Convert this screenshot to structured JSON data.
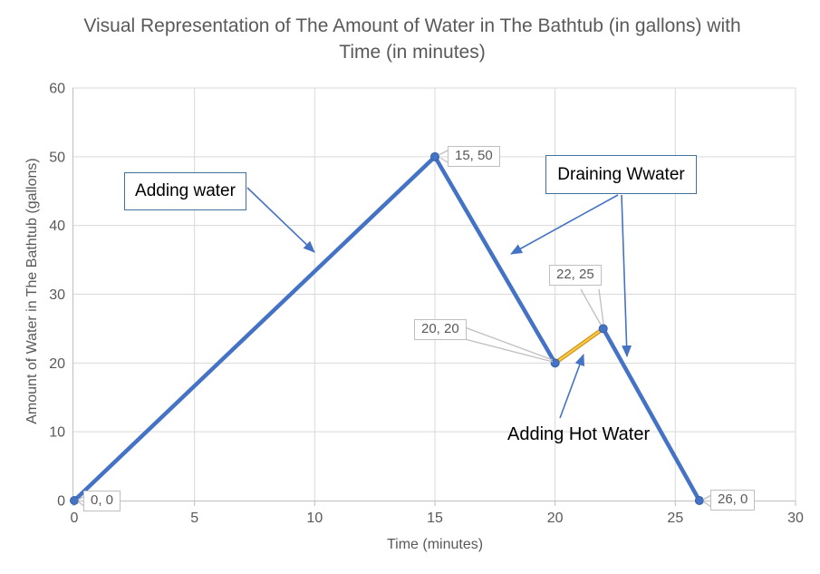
{
  "chart_data": {
    "type": "line",
    "title": "Visual Representation of The Amount of Water in The Bathtub (in gallons) with Time (in minutes)",
    "xlabel": "Time (minutes)",
    "ylabel": "Amount of Water in The Bathtub (gallons)",
    "xlim": [
      0,
      30
    ],
    "ylim": [
      0,
      60
    ],
    "x_ticks": [
      0,
      5,
      10,
      15,
      20,
      25,
      30
    ],
    "y_ticks": [
      0,
      10,
      20,
      30,
      40,
      50,
      60
    ],
    "grid": true,
    "legend": "none",
    "series": [
      {
        "name": "adding-water",
        "color": "#4472C4",
        "points": [
          [
            0,
            0
          ],
          [
            15,
            50
          ]
        ]
      },
      {
        "name": "draining-water-1",
        "color": "#4472C4",
        "points": [
          [
            15,
            50
          ],
          [
            20,
            20
          ]
        ]
      },
      {
        "name": "adding-hot-water",
        "color": "#C99117",
        "highlight": "#FFC843",
        "points": [
          [
            20,
            20
          ],
          [
            22,
            25
          ]
        ]
      },
      {
        "name": "draining-water-2",
        "color": "#4472C4",
        "points": [
          [
            22,
            25
          ],
          [
            26,
            0
          ]
        ]
      }
    ],
    "markers": [
      [
        0,
        0
      ],
      [
        15,
        50
      ],
      [
        20,
        20
      ],
      [
        22,
        25
      ],
      [
        26,
        0
      ]
    ],
    "point_labels": [
      "0, 0",
      "15, 50",
      "20, 20",
      "22, 25",
      "26, 0"
    ]
  },
  "annotations": {
    "adding_water": "Adding water",
    "draining_water": "Draining Wwater",
    "adding_hot_water": "Adding Hot Water"
  },
  "colors": {
    "line_blue": "#4472C4",
    "line_gold": "#FFC000",
    "marker_edge": "#3A62A8",
    "grid": "#D9D9D9",
    "axis": "#BFBFBF",
    "text_gray": "#595959",
    "leader": "#BFBFBF",
    "annotation_border": "#41719C",
    "arrow": "#4472C4"
  }
}
